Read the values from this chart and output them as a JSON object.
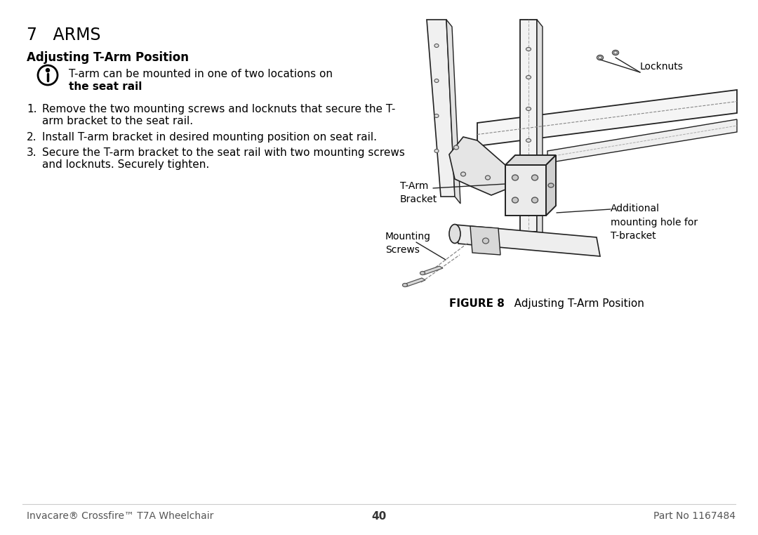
{
  "bg_color": "#ffffff",
  "title": "7   ARMS",
  "subtitle": "Adjusting T-Arm Position",
  "note_text_line1": "T-arm can be mounted in one of two locations on",
  "note_text_line2": "the seat rail",
  "step1": "Remove the two mounting screws and locknuts that secure the T-\narm bracket to the seat rail.",
  "step2": "Install T-arm bracket in desired mounting position on seat rail.",
  "step3": "Secure the T-arm bracket to the seat rail with two mounting screws\nand locknuts. Securely tighten.",
  "figure_caption_bold": "FIGURE 8",
  "figure_caption_normal": "   Adjusting T-Arm Position",
  "footer_left": "Invacare® Crossfire™ T7A Wheelchair",
  "footer_center": "40",
  "footer_right": "Part No 1167484",
  "label_locknuts": "Locknuts",
  "label_tarm_bracket": "T-Arm\nBracket",
  "label_mounting_screws": "Mounting\nScrews",
  "label_additional": "Additional\nmounting hole for\nT-bracket",
  "text_color": "#000000",
  "gray_color": "#666666",
  "line_color": "#222222"
}
